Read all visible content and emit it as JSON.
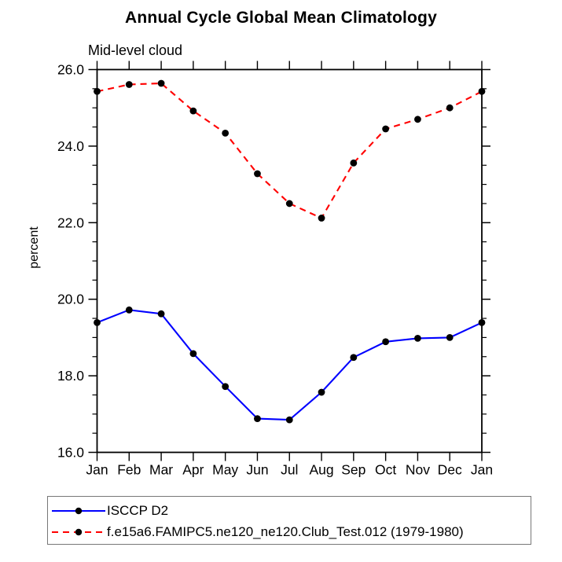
{
  "page": {
    "background": "#ffffff"
  },
  "chart_data": {
    "type": "line",
    "title": "Annual Cycle Global Mean Climatology",
    "subtitle": "Mid-level cloud",
    "ylabel": "percent",
    "xlabel": "",
    "categories": [
      "Jan",
      "Feb",
      "Mar",
      "Apr",
      "May",
      "Jun",
      "Jul",
      "Aug",
      "Sep",
      "Oct",
      "Nov",
      "Dec",
      "Jan"
    ],
    "ylim": [
      16.0,
      26.0
    ],
    "ytick_step": 2.0,
    "ytick_minor_step": 0.5,
    "ytick_labels": [
      "16.0",
      "18.0",
      "20.0",
      "22.0",
      "24.0",
      "26.0"
    ],
    "grid": false,
    "legend_position": "bottom-left-box",
    "marker": {
      "shape": "circle",
      "color": "#000000"
    },
    "axis_color": "#000000",
    "series": [
      {
        "name": "ISCCP D2",
        "color": "#0000ff",
        "line_style": "solid",
        "values": [
          19.39,
          19.72,
          19.62,
          18.58,
          17.72,
          16.88,
          16.85,
          17.57,
          18.48,
          18.89,
          18.98,
          19.0,
          19.39
        ]
      },
      {
        "name": "f.e15a6.FAMIPC5.ne120_ne120.Club_Test.012 (1979-1980)",
        "color": "#ff0000",
        "line_style": "dashed",
        "values": [
          25.43,
          25.61,
          25.64,
          24.92,
          24.34,
          23.28,
          22.5,
          22.12,
          23.56,
          24.45,
          24.7,
          25.0,
          25.43
        ]
      }
    ]
  }
}
